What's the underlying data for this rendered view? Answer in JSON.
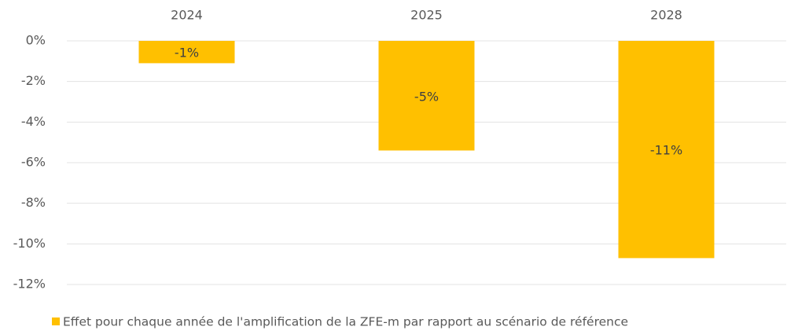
{
  "chart_data": {
    "type": "bar",
    "categories": [
      "2024",
      "2025",
      "2028"
    ],
    "series": [
      {
        "name": "Effet pour chaque année de l'amplification de la ZFE-m par rapport au scénario de référence",
        "color": "#ffc000",
        "values": [
          -1.1,
          -5.4,
          -10.7
        ],
        "value_labels": [
          "-1%",
          "-5%",
          "-11%"
        ]
      }
    ],
    "ylim": [
      -12,
      0
    ],
    "yticks": [
      {
        "value": 0,
        "label": "0%"
      },
      {
        "value": -2,
        "label": "-2%"
      },
      {
        "value": -4,
        "label": "-4%"
      },
      {
        "value": -6,
        "label": "-6%"
      },
      {
        "value": -8,
        "label": "-8%"
      },
      {
        "value": -10,
        "label": "-10%"
      },
      {
        "value": -12,
        "label": "-12%"
      }
    ],
    "grid": true,
    "legend": "bottom"
  }
}
